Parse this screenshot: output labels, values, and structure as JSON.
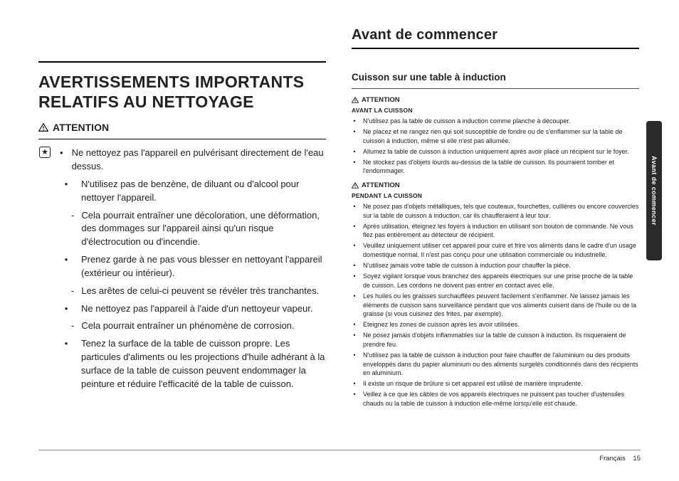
{
  "left": {
    "title": "AVERTISSEMENTS IMPORTANTS RELATIFS AU NETTOYAGE",
    "attention": "ATTENTION",
    "items": [
      {
        "text": "Ne nettoyez pas l'appareil en pulvérisant directement de l'eau dessus.",
        "starred": true
      },
      {
        "text": "N'utilisez pas de benzène, de diluant ou d'alcool pour nettoyer l'appareil.",
        "subs": [
          "Cela pourrait entraîner une décoloration, une déformation, des dommages sur l'appareil ainsi qu'un risque d'électrocution ou d'incendie."
        ]
      },
      {
        "text": "Prenez garde à ne pas vous blesser en nettoyant l'appareil (extérieur ou intérieur).",
        "subs": [
          "Les arêtes de celui-ci peuvent se révéler très tranchantes."
        ]
      },
      {
        "text": "Ne nettoyez pas l'appareil à l'aide d'un nettoyeur vapeur.",
        "subs": [
          "Cela pourrait entraîner un phénomène de corrosion."
        ]
      },
      {
        "text": "Tenez la surface de la table de cuisson propre. Les particules d'aliments ou les projections d'huile adhérant à la surface de la table de cuisson peuvent endommager la peinture et réduire l'efficacité de la table de cuisson."
      }
    ]
  },
  "right": {
    "section": "Avant de commencer",
    "subsection": "Cuisson sur une table à induction",
    "attn": "ATTENTION",
    "block1_title": "AVANT LA CUISSON",
    "block1": [
      "N'utilisez pas la table de cuisson à induction comme planche à découper.",
      "Ne placez et ne rangez rien qui soit susceptible de fondre ou de s'enflammer sur la table de cuisson à induction, même si elle n'est pas allumée.",
      "Allumez la table de cuisson à induction uniquement après avoir placé un récipient sur le foyer.",
      "Ne stockez pas d'objets lourds au-dessus de la table de cuisson. Ils pourraient tomber et l'endommager."
    ],
    "block2_title": "PENDANT LA CUISSON",
    "block2": [
      "Ne posez pas d'objets métalliques, tels que couteaux, fourchettes, cuillères ou encore couvercles sur la table de cuisson à induction, car ils chaufferaient à leur tour.",
      "Après utilisation, éteignez les foyers à induction en utilisant son bouton de commande. Ne vous fiez pas entièrement au détecteur de récipient.",
      "Veuillez uniquement utiliser cet appareil pour cuire et frire vos aliments dans le cadre d'un usage domestique normal. Il n'est pas conçu pour une utilisation commerciale ou industrielle.",
      "N'utilisez jamais votre table de cuisson à induction pour chauffer la pièce.",
      "Soyez vigilant lorsque vous branchez des appareils électriques sur une prise proche de la table de cuisson. Les cordons ne doivent pas entrer en contact avec elle.",
      "Les huiles ou les graisses surchauffées peuvent facilement s'enflammer. Ne laissez jamais les éléments de cuisson sans surveillance pendant que vos aliments cuisent dans de l'huile ou de la graisse (si vous cuisinez des frites, par exemple).",
      "Eteignez les zones de cuisson après les avoir utilisées.",
      "Ne posez jamais d'objets inflammables sur la table de cuisson à induction. Ils risqueraient de prendre feu.",
      "N'utilisez pas la table de cuisson à induction pour faire chauffer de l'aluminium ou des produits enveloppés dans du papier aluminium ou des aliments surgelés conditionnés dans des récipients en aluminium.",
      "Il existe un risque de brûlure si cet appareil est utilisé de manière imprudente.",
      "Veillez à ce que les câbles de vos appareils électriques ne puissent pas toucher d'ustensiles chauds ou la table de cuisson à induction elle-même lorsqu'elle est chaude."
    ]
  },
  "sideTab": "Avant de commencer",
  "footer": {
    "lang": "Français",
    "page": "15"
  }
}
